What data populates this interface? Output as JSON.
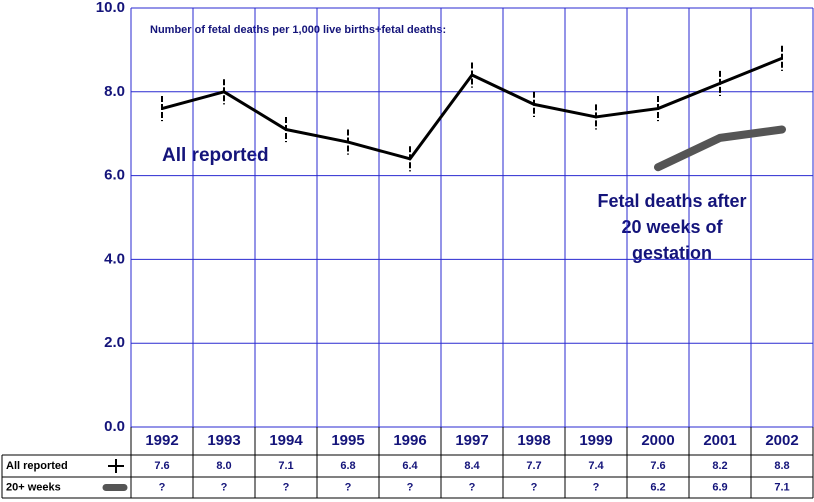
{
  "chart_data": {
    "type": "line",
    "title": "Number of fetal deaths per 1,000 live births+fetal deaths:",
    "annotations": [
      "All reported",
      [
        "Fetal deaths after",
        "20 weeks of",
        "gestation"
      ]
    ],
    "categories": [
      "1992",
      "1993",
      "1994",
      "1995",
      "1996",
      "1997",
      "1998",
      "1999",
      "2000",
      "2001",
      "2002"
    ],
    "series": [
      {
        "name": "All reported",
        "color": "#000000",
        "values": [
          7.6,
          8.0,
          7.1,
          6.8,
          6.4,
          8.4,
          7.7,
          7.4,
          7.6,
          8.2,
          8.8
        ],
        "value_labels": [
          "7.6",
          "8.0",
          "7.1",
          "6.8",
          "6.4",
          "8.4",
          "7.7",
          "7.4",
          "7.6",
          "8.2",
          "8.8"
        ],
        "errors": [
          0.3,
          0.3,
          0.3,
          0.3,
          0.3,
          0.3,
          0.3,
          0.3,
          0.3,
          0.3,
          0.3
        ]
      },
      {
        "name": "20+ weeks",
        "color": "#555555",
        "values": [
          null,
          null,
          null,
          null,
          null,
          null,
          null,
          null,
          6.2,
          6.9,
          7.1
        ],
        "value_labels": [
          "?",
          "?",
          "?",
          "?",
          "?",
          "?",
          "?",
          "?",
          "6.2",
          "6.9",
          "7.1"
        ]
      }
    ],
    "ylim": [
      0,
      10
    ],
    "yticks": [
      {
        "value": 0,
        "label": "0.0"
      },
      {
        "value": 2,
        "label": "2.0"
      },
      {
        "value": 4,
        "label": "4.0"
      },
      {
        "value": 6,
        "label": "6.0"
      },
      {
        "value": 8,
        "label": "8.0"
      },
      {
        "value": 10,
        "label": "10.0"
      }
    ],
    "grid": true
  }
}
